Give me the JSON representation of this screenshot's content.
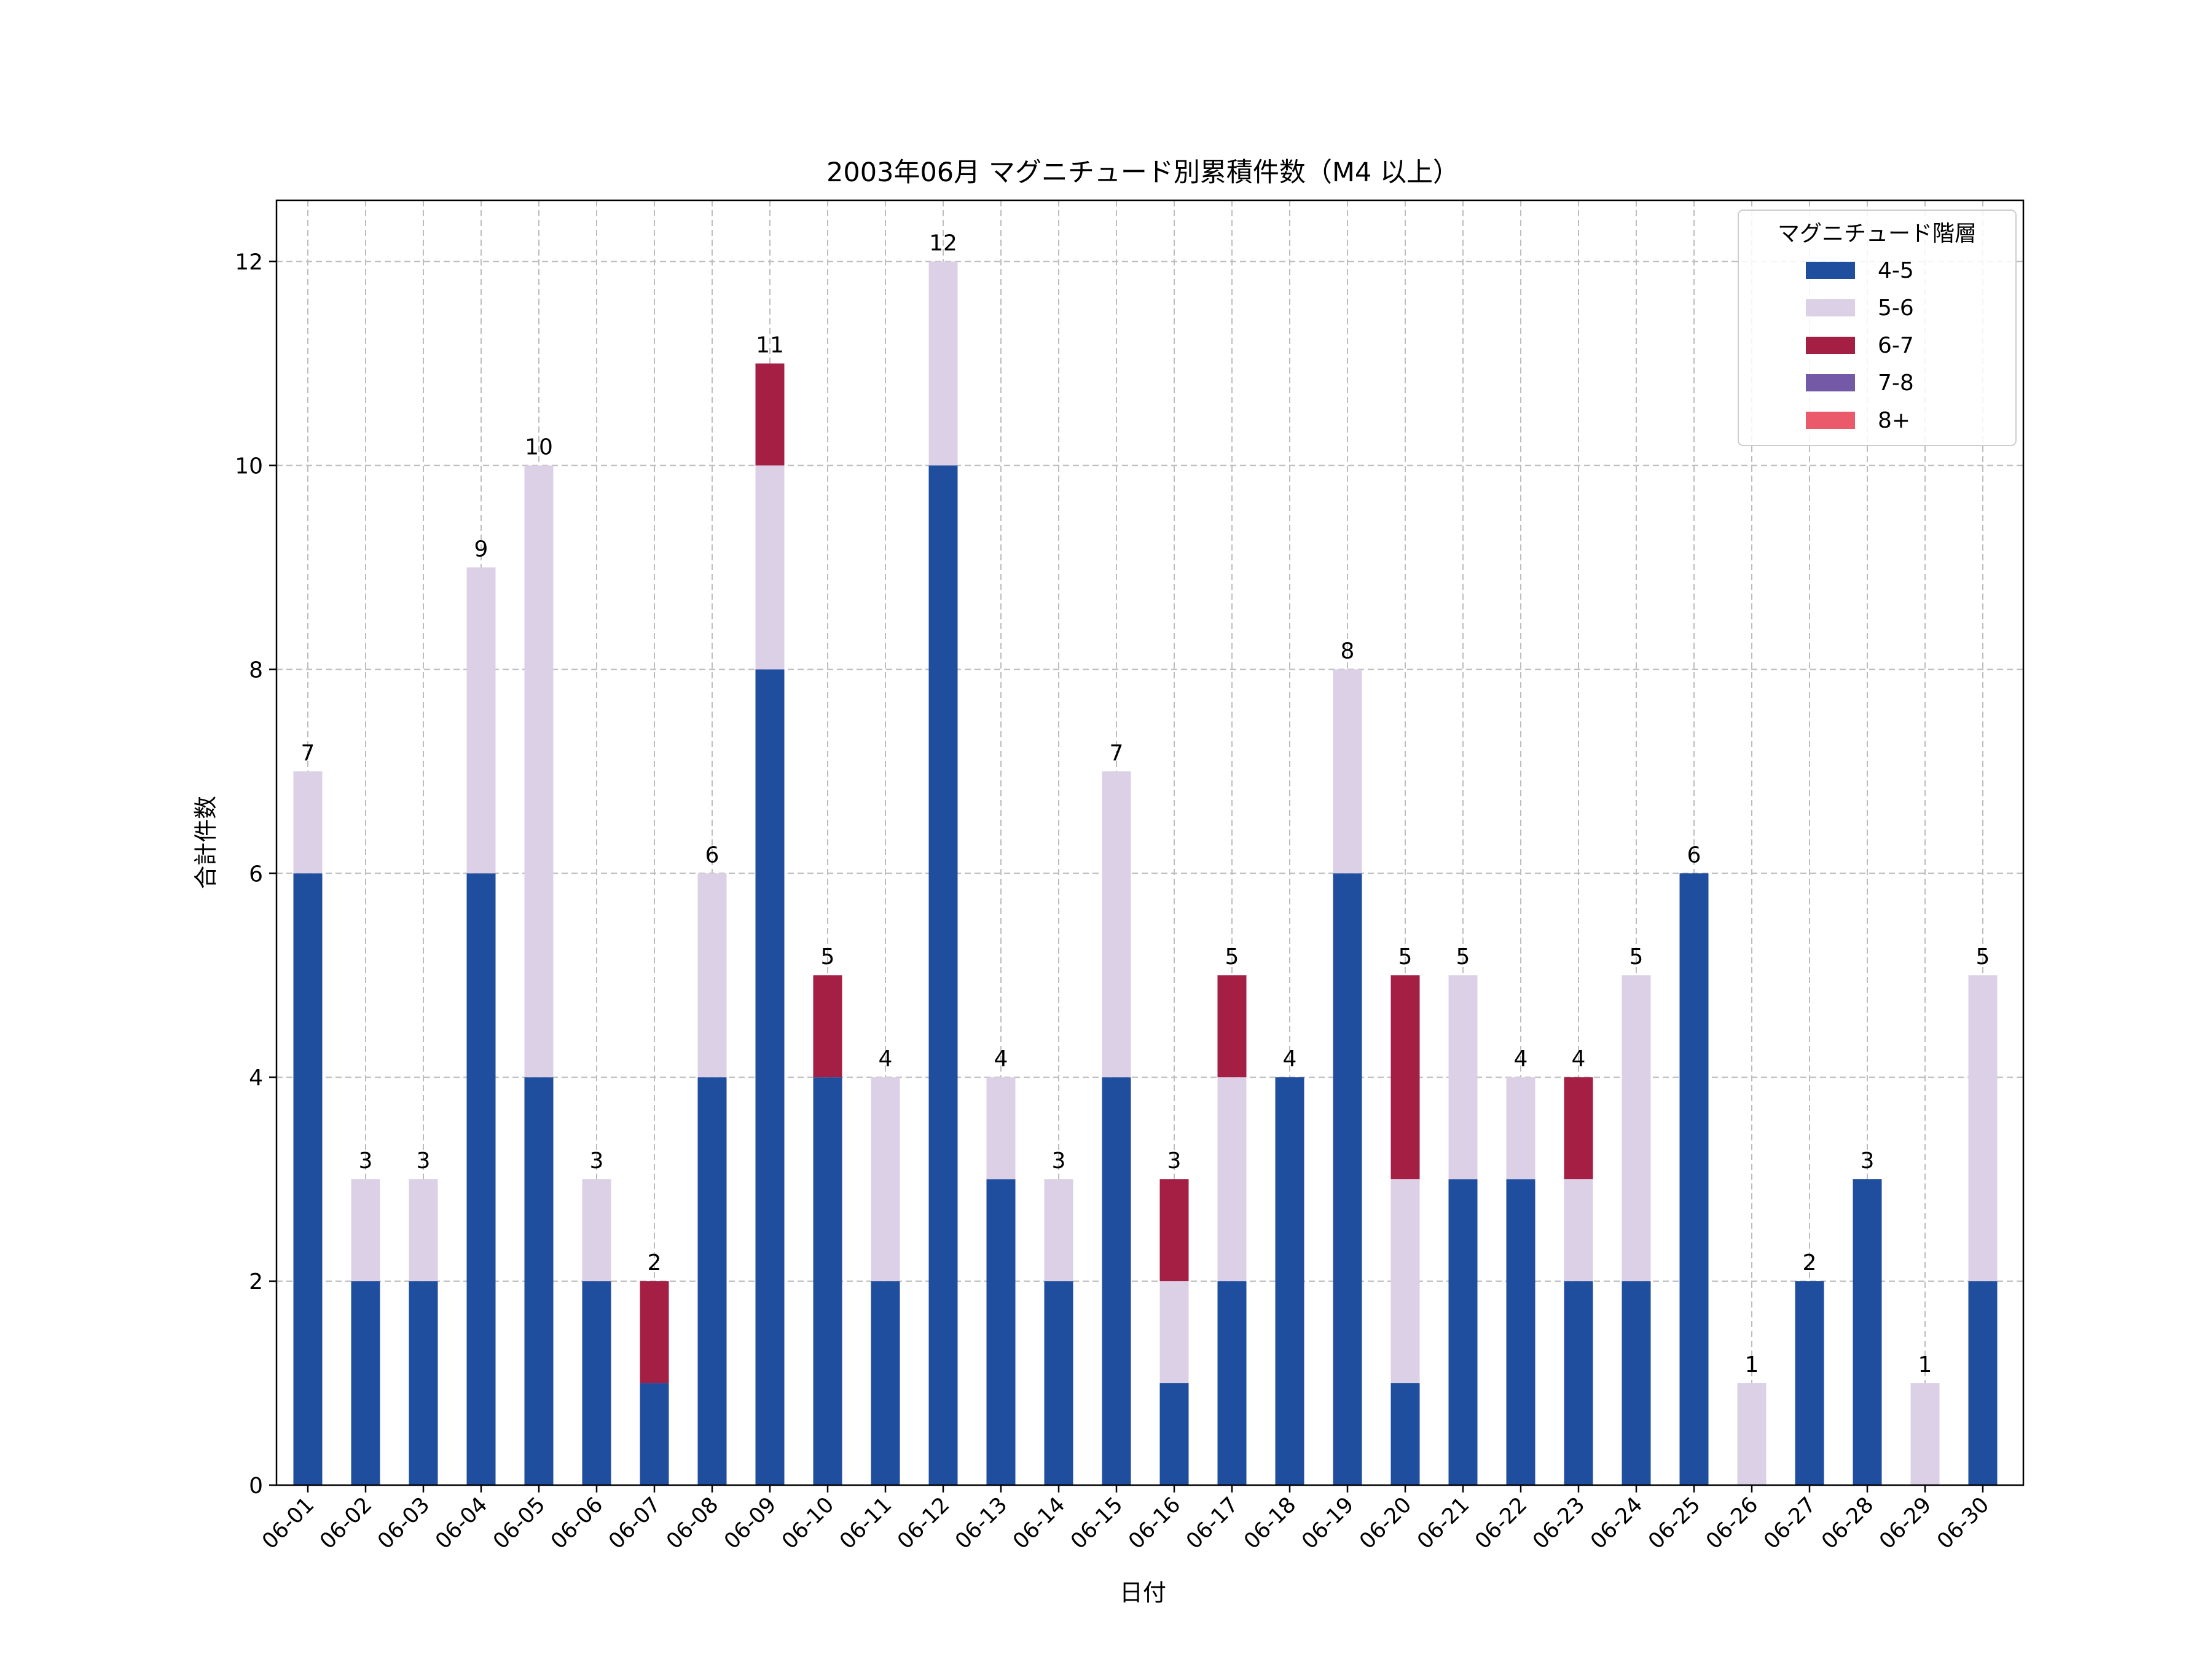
{
  "chart_data": {
    "type": "bar",
    "stacked": true,
    "title": "2003年06月 マグニチュード別累積件数（M4 以上）",
    "xlabel": "日付",
    "ylabel": "合計件数",
    "ylim": [
      0,
      12.6
    ],
    "yticks": [
      0,
      2,
      4,
      6,
      8,
      10,
      12
    ],
    "grid": true,
    "legend": {
      "title": "マグニチュード階層",
      "placement": "top-right"
    },
    "categories": [
      "06-01",
      "06-02",
      "06-03",
      "06-04",
      "06-05",
      "06-06",
      "06-07",
      "06-08",
      "06-09",
      "06-10",
      "06-11",
      "06-12",
      "06-13",
      "06-14",
      "06-15",
      "06-16",
      "06-17",
      "06-18",
      "06-19",
      "06-20",
      "06-21",
      "06-22",
      "06-23",
      "06-24",
      "06-25",
      "06-26",
      "06-27",
      "06-28",
      "06-29",
      "06-30"
    ],
    "series": [
      {
        "name": "4-5",
        "color": "#1f4e9e",
        "values": [
          6,
          2,
          2,
          6,
          4,
          2,
          1,
          4,
          8,
          4,
          2,
          10,
          3,
          2,
          4,
          1,
          2,
          4,
          6,
          1,
          3,
          3,
          2,
          2,
          6,
          0,
          2,
          3,
          0,
          2
        ]
      },
      {
        "name": "5-6",
        "color": "#dcd0e6",
        "values": [
          1,
          1,
          1,
          3,
          6,
          1,
          0,
          2,
          2,
          0,
          2,
          2,
          1,
          1,
          3,
          1,
          2,
          0,
          2,
          2,
          2,
          1,
          1,
          3,
          0,
          1,
          0,
          0,
          1,
          3
        ]
      },
      {
        "name": "6-7",
        "color": "#a51f45",
        "values": [
          0,
          0,
          0,
          0,
          0,
          0,
          1,
          0,
          1,
          1,
          0,
          0,
          0,
          0,
          0,
          1,
          1,
          0,
          0,
          2,
          0,
          0,
          1,
          0,
          0,
          0,
          0,
          0,
          0,
          0
        ]
      },
      {
        "name": "7-8",
        "color": "#7459a6",
        "values": [
          0,
          0,
          0,
          0,
          0,
          0,
          0,
          0,
          0,
          0,
          0,
          0,
          0,
          0,
          0,
          0,
          0,
          0,
          0,
          0,
          0,
          0,
          0,
          0,
          0,
          0,
          0,
          0,
          0,
          0
        ]
      },
      {
        "name": "8+",
        "color": "#ea5a6a",
        "values": [
          0,
          0,
          0,
          0,
          0,
          0,
          0,
          0,
          0,
          0,
          0,
          0,
          0,
          0,
          0,
          0,
          0,
          0,
          0,
          0,
          0,
          0,
          0,
          0,
          0,
          0,
          0,
          0,
          0,
          0
        ]
      }
    ],
    "totals": [
      7,
      3,
      3,
      9,
      10,
      3,
      2,
      6,
      11,
      5,
      4,
      12,
      4,
      3,
      7,
      3,
      5,
      4,
      8,
      5,
      5,
      4,
      4,
      5,
      6,
      1,
      2,
      3,
      1,
      5
    ]
  }
}
